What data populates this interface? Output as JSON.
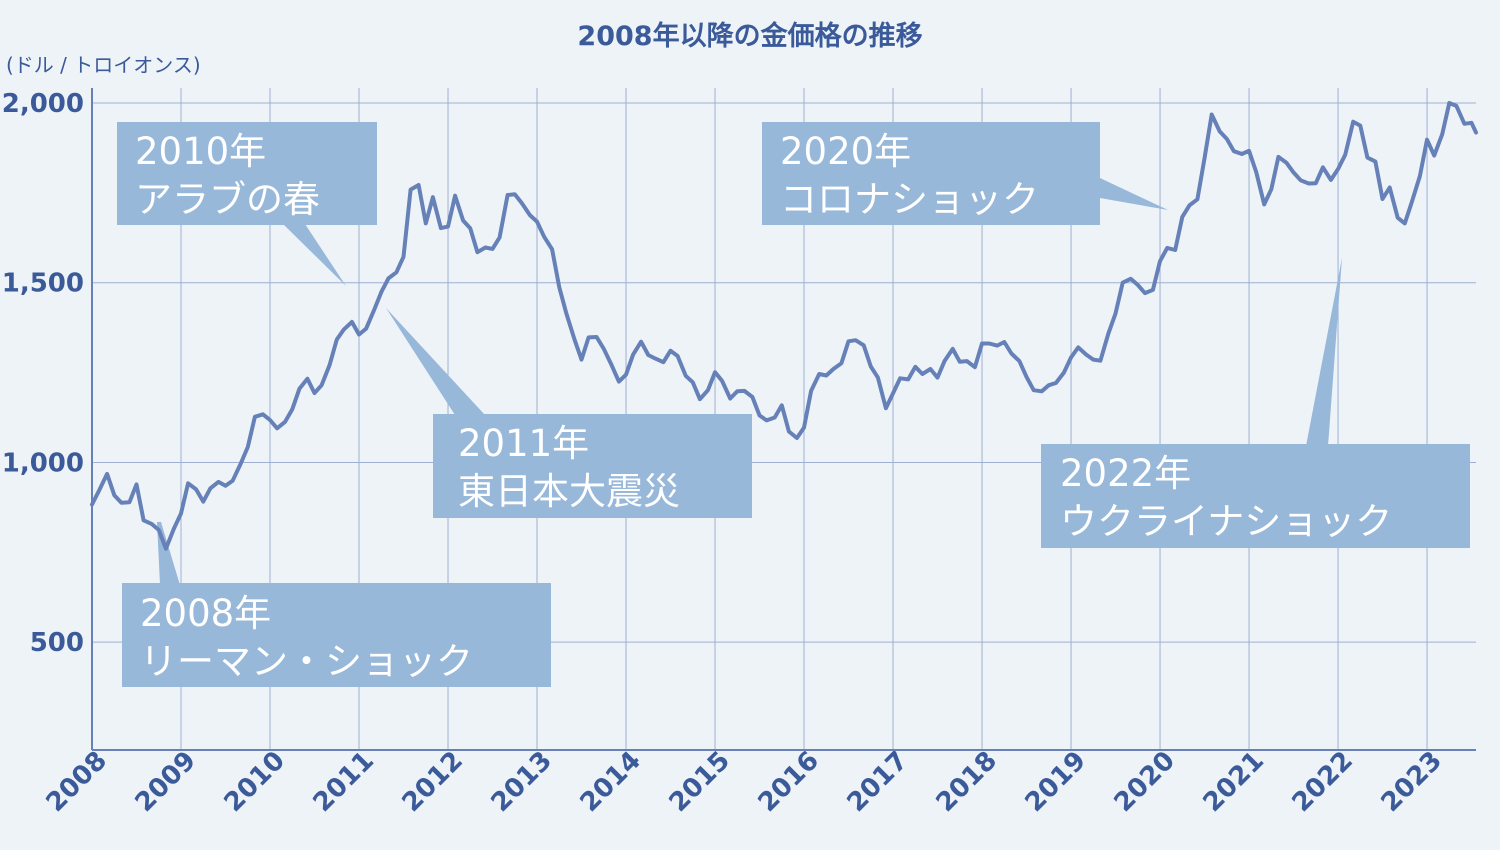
{
  "chart_data": {
    "type": "line",
    "title": "2008年以降の金価格の推移",
    "ylabel": "(ドル / トロイオンス)",
    "xlabel": "",
    "ylim": [
      200,
      2000
    ],
    "xlim": [
      2008,
      2023.55
    ],
    "yticks": [
      500,
      1000,
      1500,
      2000
    ],
    "ytick_labels": [
      "500",
      "1,000",
      "1,500",
      "2,000"
    ],
    "xticks": [
      2008,
      2009,
      2010,
      2011,
      2012,
      2013,
      2014,
      2015,
      2016,
      2017,
      2018,
      2019,
      2020,
      2021,
      2022,
      2023
    ],
    "xtick_labels": [
      "2008",
      "2009",
      "2010",
      "2011",
      "2012",
      "2013",
      "2014",
      "2015",
      "2016",
      "2017",
      "2018",
      "2019",
      "2020",
      "2021",
      "2022",
      "2023"
    ],
    "grid": true,
    "line_color": "#6680b8",
    "callout_color": "#98b8da",
    "x": [
      2008.0,
      2008.08,
      2008.17,
      2008.25,
      2008.33,
      2008.42,
      2008.5,
      2008.58,
      2008.67,
      2008.75,
      2008.83,
      2008.92,
      2009.0,
      2009.08,
      2009.17,
      2009.25,
      2009.33,
      2009.42,
      2009.5,
      2009.58,
      2009.67,
      2009.75,
      2009.83,
      2009.92,
      2010.0,
      2010.08,
      2010.17,
      2010.25,
      2010.33,
      2010.42,
      2010.5,
      2010.58,
      2010.67,
      2010.75,
      2010.83,
      2010.92,
      2011.0,
      2011.08,
      2011.17,
      2011.25,
      2011.33,
      2011.42,
      2011.5,
      2011.58,
      2011.67,
      2011.75,
      2011.83,
      2011.92,
      2012.0,
      2012.08,
      2012.17,
      2012.25,
      2012.33,
      2012.42,
      2012.5,
      2012.58,
      2012.67,
      2012.75,
      2012.83,
      2012.92,
      2013.0,
      2013.08,
      2013.17,
      2013.25,
      2013.33,
      2013.42,
      2013.5,
      2013.58,
      2013.67,
      2013.75,
      2013.83,
      2013.92,
      2014.0,
      2014.08,
      2014.17,
      2014.25,
      2014.33,
      2014.42,
      2014.5,
      2014.58,
      2014.67,
      2014.75,
      2014.83,
      2014.92,
      2015.0,
      2015.08,
      2015.17,
      2015.25,
      2015.33,
      2015.42,
      2015.5,
      2015.58,
      2015.67,
      2015.75,
      2015.83,
      2015.92,
      2016.0,
      2016.08,
      2016.17,
      2016.25,
      2016.33,
      2016.42,
      2016.5,
      2016.58,
      2016.67,
      2016.75,
      2016.83,
      2016.92,
      2017.0,
      2017.08,
      2017.17,
      2017.25,
      2017.33,
      2017.42,
      2017.5,
      2017.58,
      2017.67,
      2017.75,
      2017.83,
      2017.92,
      2018.0,
      2018.08,
      2018.17,
      2018.25,
      2018.33,
      2018.42,
      2018.5,
      2018.58,
      2018.67,
      2018.75,
      2018.83,
      2018.92,
      2019.0,
      2019.08,
      2019.17,
      2019.25,
      2019.33,
      2019.42,
      2019.5,
      2019.58,
      2019.67,
      2019.75,
      2019.83,
      2019.92,
      2020.0,
      2020.08,
      2020.17,
      2020.25,
      2020.33,
      2020.42,
      2020.5,
      2020.58,
      2020.67,
      2020.75,
      2020.83,
      2020.92,
      2021.0,
      2021.08,
      2021.17,
      2021.25,
      2021.33,
      2021.42,
      2021.5,
      2021.58,
      2021.67,
      2021.75,
      2021.83,
      2021.92,
      2022.0,
      2022.08,
      2022.17,
      2022.25,
      2022.33,
      2022.42,
      2022.5,
      2022.58,
      2022.67,
      2022.75,
      2022.83,
      2022.92,
      2023.0,
      2023.08,
      2023.17,
      2023.25,
      2023.33,
      2023.42,
      2023.5,
      2023.55
    ],
    "y": [
      883,
      922,
      968,
      909,
      888,
      889,
      939,
      839,
      829,
      812,
      760,
      816,
      858,
      942,
      925,
      891,
      928,
      946,
      935,
      949,
      996,
      1043,
      1127,
      1134,
      1118,
      1095,
      1113,
      1148,
      1205,
      1233,
      1193,
      1215,
      1271,
      1342,
      1370,
      1391,
      1356,
      1372,
      1424,
      1474,
      1512,
      1529,
      1572,
      1759,
      1772,
      1665,
      1738,
      1652,
      1656,
      1742,
      1673,
      1651,
      1585,
      1598,
      1594,
      1626,
      1744,
      1746,
      1721,
      1688,
      1670,
      1628,
      1593,
      1487,
      1414,
      1343,
      1286,
      1348,
      1349,
      1316,
      1275,
      1225,
      1244,
      1300,
      1336,
      1299,
      1289,
      1279,
      1311,
      1296,
      1241,
      1223,
      1176,
      1201,
      1251,
      1227,
      1178,
      1198,
      1199,
      1182,
      1131,
      1117,
      1125,
      1159,
      1086,
      1068,
      1097,
      1199,
      1246,
      1242,
      1260,
      1276,
      1337,
      1340,
      1326,
      1267,
      1236,
      1151,
      1192,
      1234,
      1231,
      1266,
      1246,
      1260,
      1236,
      1283,
      1316,
      1280,
      1282,
      1265,
      1331,
      1331,
      1325,
      1335,
      1303,
      1282,
      1238,
      1201,
      1198,
      1215,
      1221,
      1250,
      1292,
      1320,
      1300,
      1286,
      1283,
      1359,
      1414,
      1500,
      1511,
      1494,
      1471,
      1480,
      1560,
      1597,
      1591,
      1683,
      1715,
      1732,
      1846,
      1968,
      1921,
      1900,
      1866,
      1858,
      1867,
      1808,
      1718,
      1760,
      1850,
      1834,
      1807,
      1785,
      1776,
      1777,
      1821,
      1786,
      1816,
      1856,
      1948,
      1937,
      1848,
      1837,
      1733,
      1765,
      1681,
      1665,
      1725,
      1797,
      1898,
      1854,
      1913,
      2000,
      1992,
      1942,
      1945,
      1918
    ]
  },
  "callouts": [
    {
      "line1": "2008年",
      "line2": "リーマン・ショック"
    },
    {
      "line1": "2010年",
      "line2": "アラブの春"
    },
    {
      "line1": "2011年",
      "line2": "東日本大震災"
    },
    {
      "line1": "2020年",
      "line2": "コロナショック"
    },
    {
      "line1": "2022年",
      "line2": "ウクライナショック"
    }
  ]
}
